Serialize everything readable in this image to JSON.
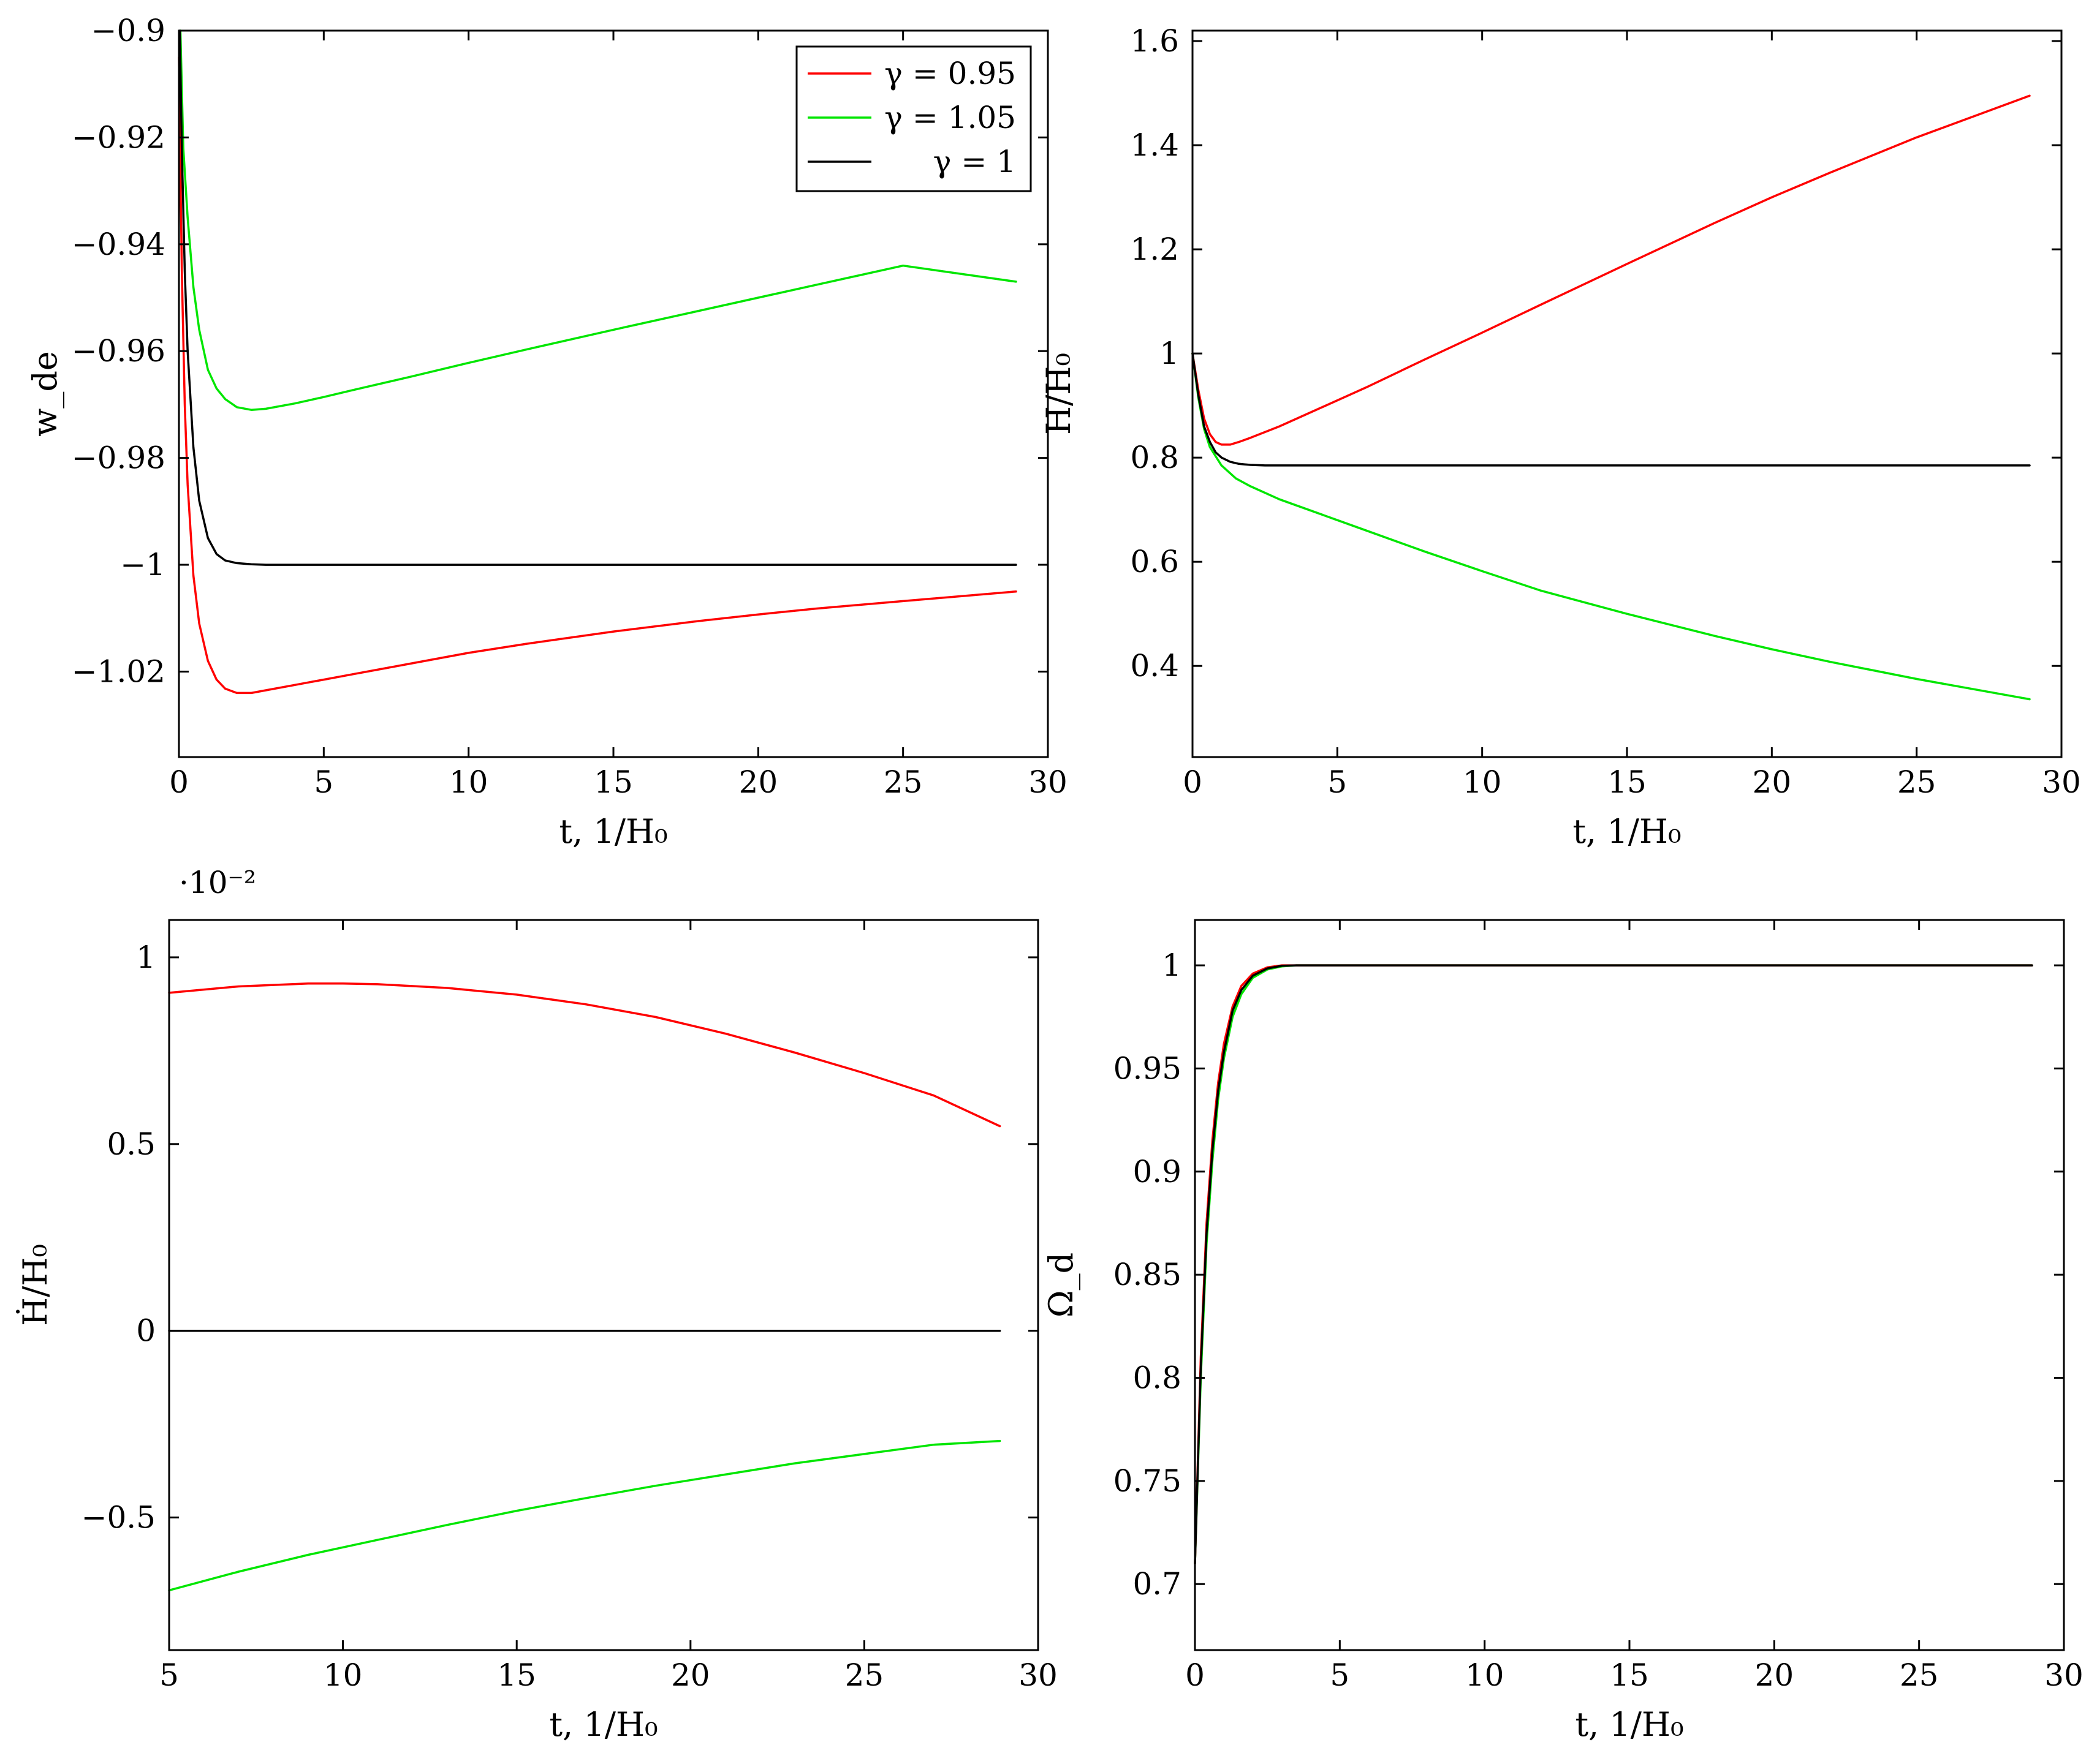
{
  "colors": {
    "red": "#ff0000",
    "green": "#00e600",
    "black": "#000000"
  },
  "chart_data": [
    {
      "type": "line",
      "xlabel": "t, 1/H₀",
      "ylabel": "w_de",
      "xlim": [
        0,
        30
      ],
      "ylim": [
        -1.036,
        -0.9
      ],
      "xticks": [
        0,
        5,
        10,
        15,
        20,
        25,
        30
      ],
      "xtick_labels": [
        "0",
        "5",
        "10",
        "15",
        "20",
        "25",
        "30"
      ],
      "yticks": [
        -0.9,
        -0.92,
        -0.94,
        -0.96,
        -0.98,
        -1.0,
        -1.02
      ],
      "ytick_labels": [
        "−0.9",
        "−0.92",
        "−0.94",
        "−0.96",
        "−0.98",
        "−1",
        "−1.02"
      ],
      "legend": {
        "position": "top-right"
      },
      "series": [
        {
          "name": "γ = 0.95",
          "color": "red",
          "x": [
            0,
            0.1,
            0.2,
            0.3,
            0.5,
            0.7,
            1.0,
            1.3,
            1.6,
            2.0,
            2.5,
            3,
            4,
            5,
            6,
            8,
            10,
            12,
            15,
            18,
            20,
            22,
            25,
            28.9
          ],
          "y": [
            -0.905,
            -0.945,
            -0.97,
            -0.985,
            -1.002,
            -1.011,
            -1.018,
            -1.0215,
            -1.0232,
            -1.024,
            -1.024,
            -1.0235,
            -1.0225,
            -1.0215,
            -1.0205,
            -1.0185,
            -1.0165,
            -1.0148,
            -1.0125,
            -1.0105,
            -1.0093,
            -1.0082,
            -1.0068,
            -1.005
          ]
        },
        {
          "name": "γ = 1.05",
          "color": "green",
          "x": [
            0.05,
            0.15,
            0.3,
            0.5,
            0.7,
            1.0,
            1.3,
            1.6,
            2.0,
            2.5,
            3,
            4,
            5,
            6,
            8,
            10,
            12,
            15,
            18,
            20,
            22,
            25,
            28.9
          ],
          "y": [
            -0.9,
            -0.922,
            -0.935,
            -0.948,
            -0.956,
            -0.9635,
            -0.967,
            -0.969,
            -0.9705,
            -0.971,
            -0.9708,
            -0.9698,
            -0.9686,
            -0.9673,
            -0.9648,
            -0.9622,
            -0.9597,
            -0.956,
            -0.9524,
            -0.95,
            -0.9476,
            -0.944,
            -0.947
          ]
        },
        {
          "name": "γ = 1",
          "color": "black",
          "x": [
            0.03,
            0.1,
            0.2,
            0.3,
            0.5,
            0.7,
            1.0,
            1.3,
            1.6,
            2.0,
            2.5,
            3,
            4,
            6,
            10,
            15,
            20,
            25,
            28.9
          ],
          "y": [
            -0.9,
            -0.922,
            -0.945,
            -0.96,
            -0.978,
            -0.988,
            -0.995,
            -0.998,
            -0.9992,
            -0.9997,
            -0.9999,
            -1.0,
            -1.0,
            -1.0,
            -1.0,
            -1.0,
            -1.0,
            -1.0,
            -1.0
          ]
        }
      ]
    },
    {
      "type": "line",
      "xlabel": "t, 1/H₀",
      "ylabel": "H/H₀",
      "xlim": [
        0,
        30
      ],
      "ylim": [
        0.225,
        1.62
      ],
      "xticks": [
        0,
        5,
        10,
        15,
        20,
        25,
        30
      ],
      "xtick_labels": [
        "0",
        "5",
        "10",
        "15",
        "20",
        "25",
        "30"
      ],
      "yticks": [
        0.4,
        0.6,
        0.8,
        1.0,
        1.2,
        1.4,
        1.6
      ],
      "ytick_labels": [
        "0.4",
        "0.6",
        "0.8",
        "1",
        "1.2",
        "1.4",
        "1.6"
      ],
      "series": [
        {
          "color": "red",
          "x": [
            0,
            0.2,
            0.4,
            0.6,
            0.8,
            1.0,
            1.3,
            1.6,
            2.0,
            3,
            4,
            6,
            8,
            10,
            12,
            15,
            18,
            20,
            22,
            25,
            28.9
          ],
          "y": [
            1.0,
            0.93,
            0.875,
            0.845,
            0.83,
            0.825,
            0.825,
            0.83,
            0.838,
            0.86,
            0.885,
            0.935,
            0.988,
            1.04,
            1.093,
            1.172,
            1.25,
            1.3,
            1.347,
            1.415,
            1.495
          ]
        },
        {
          "color": "green",
          "x": [
            0,
            0.2,
            0.4,
            0.6,
            1.0,
            1.5,
            2.0,
            3,
            4,
            5,
            6,
            8,
            10,
            12,
            15,
            18,
            20,
            22,
            25,
            28.9
          ],
          "y": [
            1.0,
            0.915,
            0.855,
            0.82,
            0.785,
            0.76,
            0.745,
            0.72,
            0.7,
            0.68,
            0.66,
            0.62,
            0.582,
            0.545,
            0.5,
            0.458,
            0.432,
            0.408,
            0.375,
            0.336
          ]
        },
        {
          "color": "black",
          "x": [
            0,
            0.2,
            0.4,
            0.6,
            0.8,
            1.0,
            1.3,
            1.6,
            2.0,
            2.5,
            3,
            4,
            6,
            10,
            15,
            20,
            25,
            28.9
          ],
          "y": [
            1.0,
            0.92,
            0.86,
            0.83,
            0.81,
            0.8,
            0.792,
            0.788,
            0.786,
            0.785,
            0.785,
            0.785,
            0.785,
            0.785,
            0.785,
            0.785,
            0.785,
            0.785
          ]
        }
      ]
    },
    {
      "type": "line",
      "xlabel": "t, 1/H₀",
      "ylabel": "Ḣ/H₀",
      "y_multiplier": "·10⁻²",
      "xlim": [
        5,
        30
      ],
      "ylim": [
        -0.855,
        1.1
      ],
      "xticks": [
        5,
        10,
        15,
        20,
        25,
        30
      ],
      "xtick_labels": [
        "5",
        "10",
        "15",
        "20",
        "25",
        "30"
      ],
      "yticks": [
        -0.5,
        0,
        0.5,
        1.0
      ],
      "ytick_labels": [
        "−0.5",
        "0",
        "0.5",
        "1"
      ],
      "series": [
        {
          "color": "red",
          "x": [
            5,
            7,
            9,
            10,
            11,
            13,
            15,
            17,
            19,
            21,
            23,
            25,
            27,
            28.9
          ],
          "y": [
            0.905,
            0.922,
            0.93,
            0.93,
            0.928,
            0.918,
            0.9,
            0.874,
            0.84,
            0.796,
            0.745,
            0.69,
            0.63,
            0.548
          ]
        },
        {
          "color": "black",
          "x": [
            5,
            28.9
          ],
          "y": [
            0,
            0
          ]
        },
        {
          "color": "green",
          "x": [
            5,
            7,
            9,
            11,
            13,
            15,
            17,
            19,
            21,
            23,
            25,
            27,
            28.9
          ],
          "y": [
            -0.695,
            -0.645,
            -0.6,
            -0.56,
            -0.52,
            -0.482,
            -0.448,
            -0.415,
            -0.385,
            -0.355,
            -0.33,
            -0.305,
            -0.295
          ]
        }
      ]
    },
    {
      "type": "line",
      "xlabel": "t, 1/H₀",
      "ylabel": "Ω_d",
      "xlim": [
        0,
        30
      ],
      "ylim": [
        0.668,
        1.022
      ],
      "xticks": [
        0,
        5,
        10,
        15,
        20,
        25,
        30
      ],
      "xtick_labels": [
        "0",
        "5",
        "10",
        "15",
        "20",
        "25",
        "30"
      ],
      "yticks": [
        0.7,
        0.75,
        0.8,
        0.85,
        0.9,
        0.95,
        1.0
      ],
      "ytick_labels": [
        "0.7",
        "0.75",
        "0.8",
        "0.85",
        "0.9",
        "0.95",
        "1"
      ],
      "series": [
        {
          "color": "green",
          "x": [
            0,
            0.2,
            0.4,
            0.6,
            0.8,
            1.0,
            1.3,
            1.6,
            2.0,
            2.5,
            3,
            3.5,
            4,
            6,
            10,
            15,
            20,
            25,
            28.9
          ],
          "y": [
            0.71,
            0.8,
            0.865,
            0.905,
            0.935,
            0.955,
            0.975,
            0.986,
            0.994,
            0.998,
            0.9995,
            1.0,
            1.0,
            1.0,
            1.0,
            1.0,
            1.0,
            1.0,
            1.0
          ]
        },
        {
          "color": "red",
          "x": [
            0,
            0.2,
            0.4,
            0.6,
            0.8,
            1.0,
            1.3,
            1.6,
            2.0,
            2.5,
            3,
            3.5,
            4,
            6,
            10,
            15,
            20,
            25,
            28.9
          ],
          "y": [
            0.71,
            0.81,
            0.875,
            0.915,
            0.943,
            0.962,
            0.98,
            0.99,
            0.996,
            0.999,
            1.0,
            1.0,
            1.0,
            1.0,
            1.0,
            1.0,
            1.0,
            1.0,
            1.0
          ]
        },
        {
          "color": "black",
          "x": [
            0,
            0.2,
            0.4,
            0.6,
            0.8,
            1.0,
            1.3,
            1.6,
            2.0,
            2.5,
            3,
            3.5,
            4,
            6,
            10,
            15,
            20,
            25,
            28.9
          ],
          "y": [
            0.71,
            0.805,
            0.87,
            0.91,
            0.939,
            0.958,
            0.978,
            0.988,
            0.995,
            0.9985,
            0.9998,
            1.0,
            1.0,
            1.0,
            1.0,
            1.0,
            1.0,
            1.0,
            1.0
          ]
        }
      ]
    }
  ]
}
